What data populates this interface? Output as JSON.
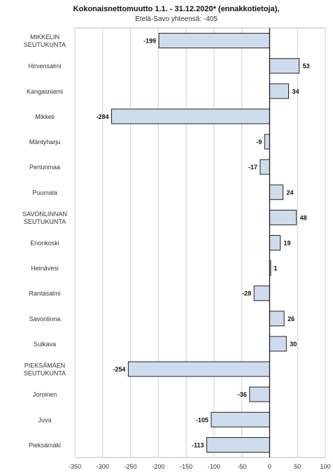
{
  "chart_data": {
    "type": "bar",
    "orientation": "horizontal",
    "title": "Kokonaisnettomuutto 1.1. - 31.12.2020* (ennakkotietoja),",
    "subtitle": "Etelä-Savo yhteensä: -405",
    "categories": [
      "MIKKELIN SEUTUKUNTA",
      "Hirvensalmi",
      "Kangasniemi",
      "Mikkeli",
      "Mäntyharju",
      "Pertunmaa",
      "Puumala",
      "SAVONLINNAN SEUTUKUNTA",
      "Enonkoski",
      "Heinävesi",
      "Rantasalmi",
      "Savonlinna",
      "Sulkava",
      "PIEKSÄMÄEN SEUTUKUNTA",
      "Joroinen",
      "Juva",
      "Pieksämäki"
    ],
    "category_lines": [
      [
        "MIKKELIN",
        "SEUTUKUNTA"
      ],
      [
        "Hirvensalmi"
      ],
      [
        "Kangasniemi"
      ],
      [
        "Mikkeli"
      ],
      [
        "Mäntyharju"
      ],
      [
        "Pertunmaa"
      ],
      [
        "Puumala"
      ],
      [
        "SAVONLINNAN",
        "SEUTUKUNTA"
      ],
      [
        "Enonkoski"
      ],
      [
        "Heinävesi"
      ],
      [
        "Rantasalmi"
      ],
      [
        "Savonlinna"
      ],
      [
        "Sulkava"
      ],
      [
        "PIEKSÄMÄEN",
        "SEUTUKUNTA"
      ],
      [
        "Joroinen"
      ],
      [
        "Juva"
      ],
      [
        "Pieksämäki"
      ]
    ],
    "values": [
      -199,
      53,
      34,
      -284,
      -9,
      -17,
      24,
      48,
      19,
      1,
      -28,
      26,
      30,
      -254,
      -36,
      -105,
      -113
    ],
    "value_labels": [
      "-199",
      "53",
      "34",
      "-284",
      "-9",
      "-17",
      "24",
      "48",
      "19",
      "1",
      "-28",
      "26",
      "30",
      "-254",
      "-36",
      "-105",
      "-113"
    ],
    "xticks": [
      -350,
      -300,
      -250,
      -200,
      -150,
      -100,
      -50,
      0,
      50,
      100
    ],
    "xtick_labels": [
      "-350",
      "-300",
      "-250",
      "-200",
      "-150",
      "-100",
      "-50",
      "0",
      "50",
      "100"
    ],
    "xlim": [
      -350,
      100
    ],
    "xlabel": "",
    "ylabel": "",
    "grid": "vertical",
    "legend": "none",
    "colors": {
      "bar_fill": "#cfdcee",
      "bar_stroke": "#222222",
      "grid": "#d0d0d0"
    }
  }
}
